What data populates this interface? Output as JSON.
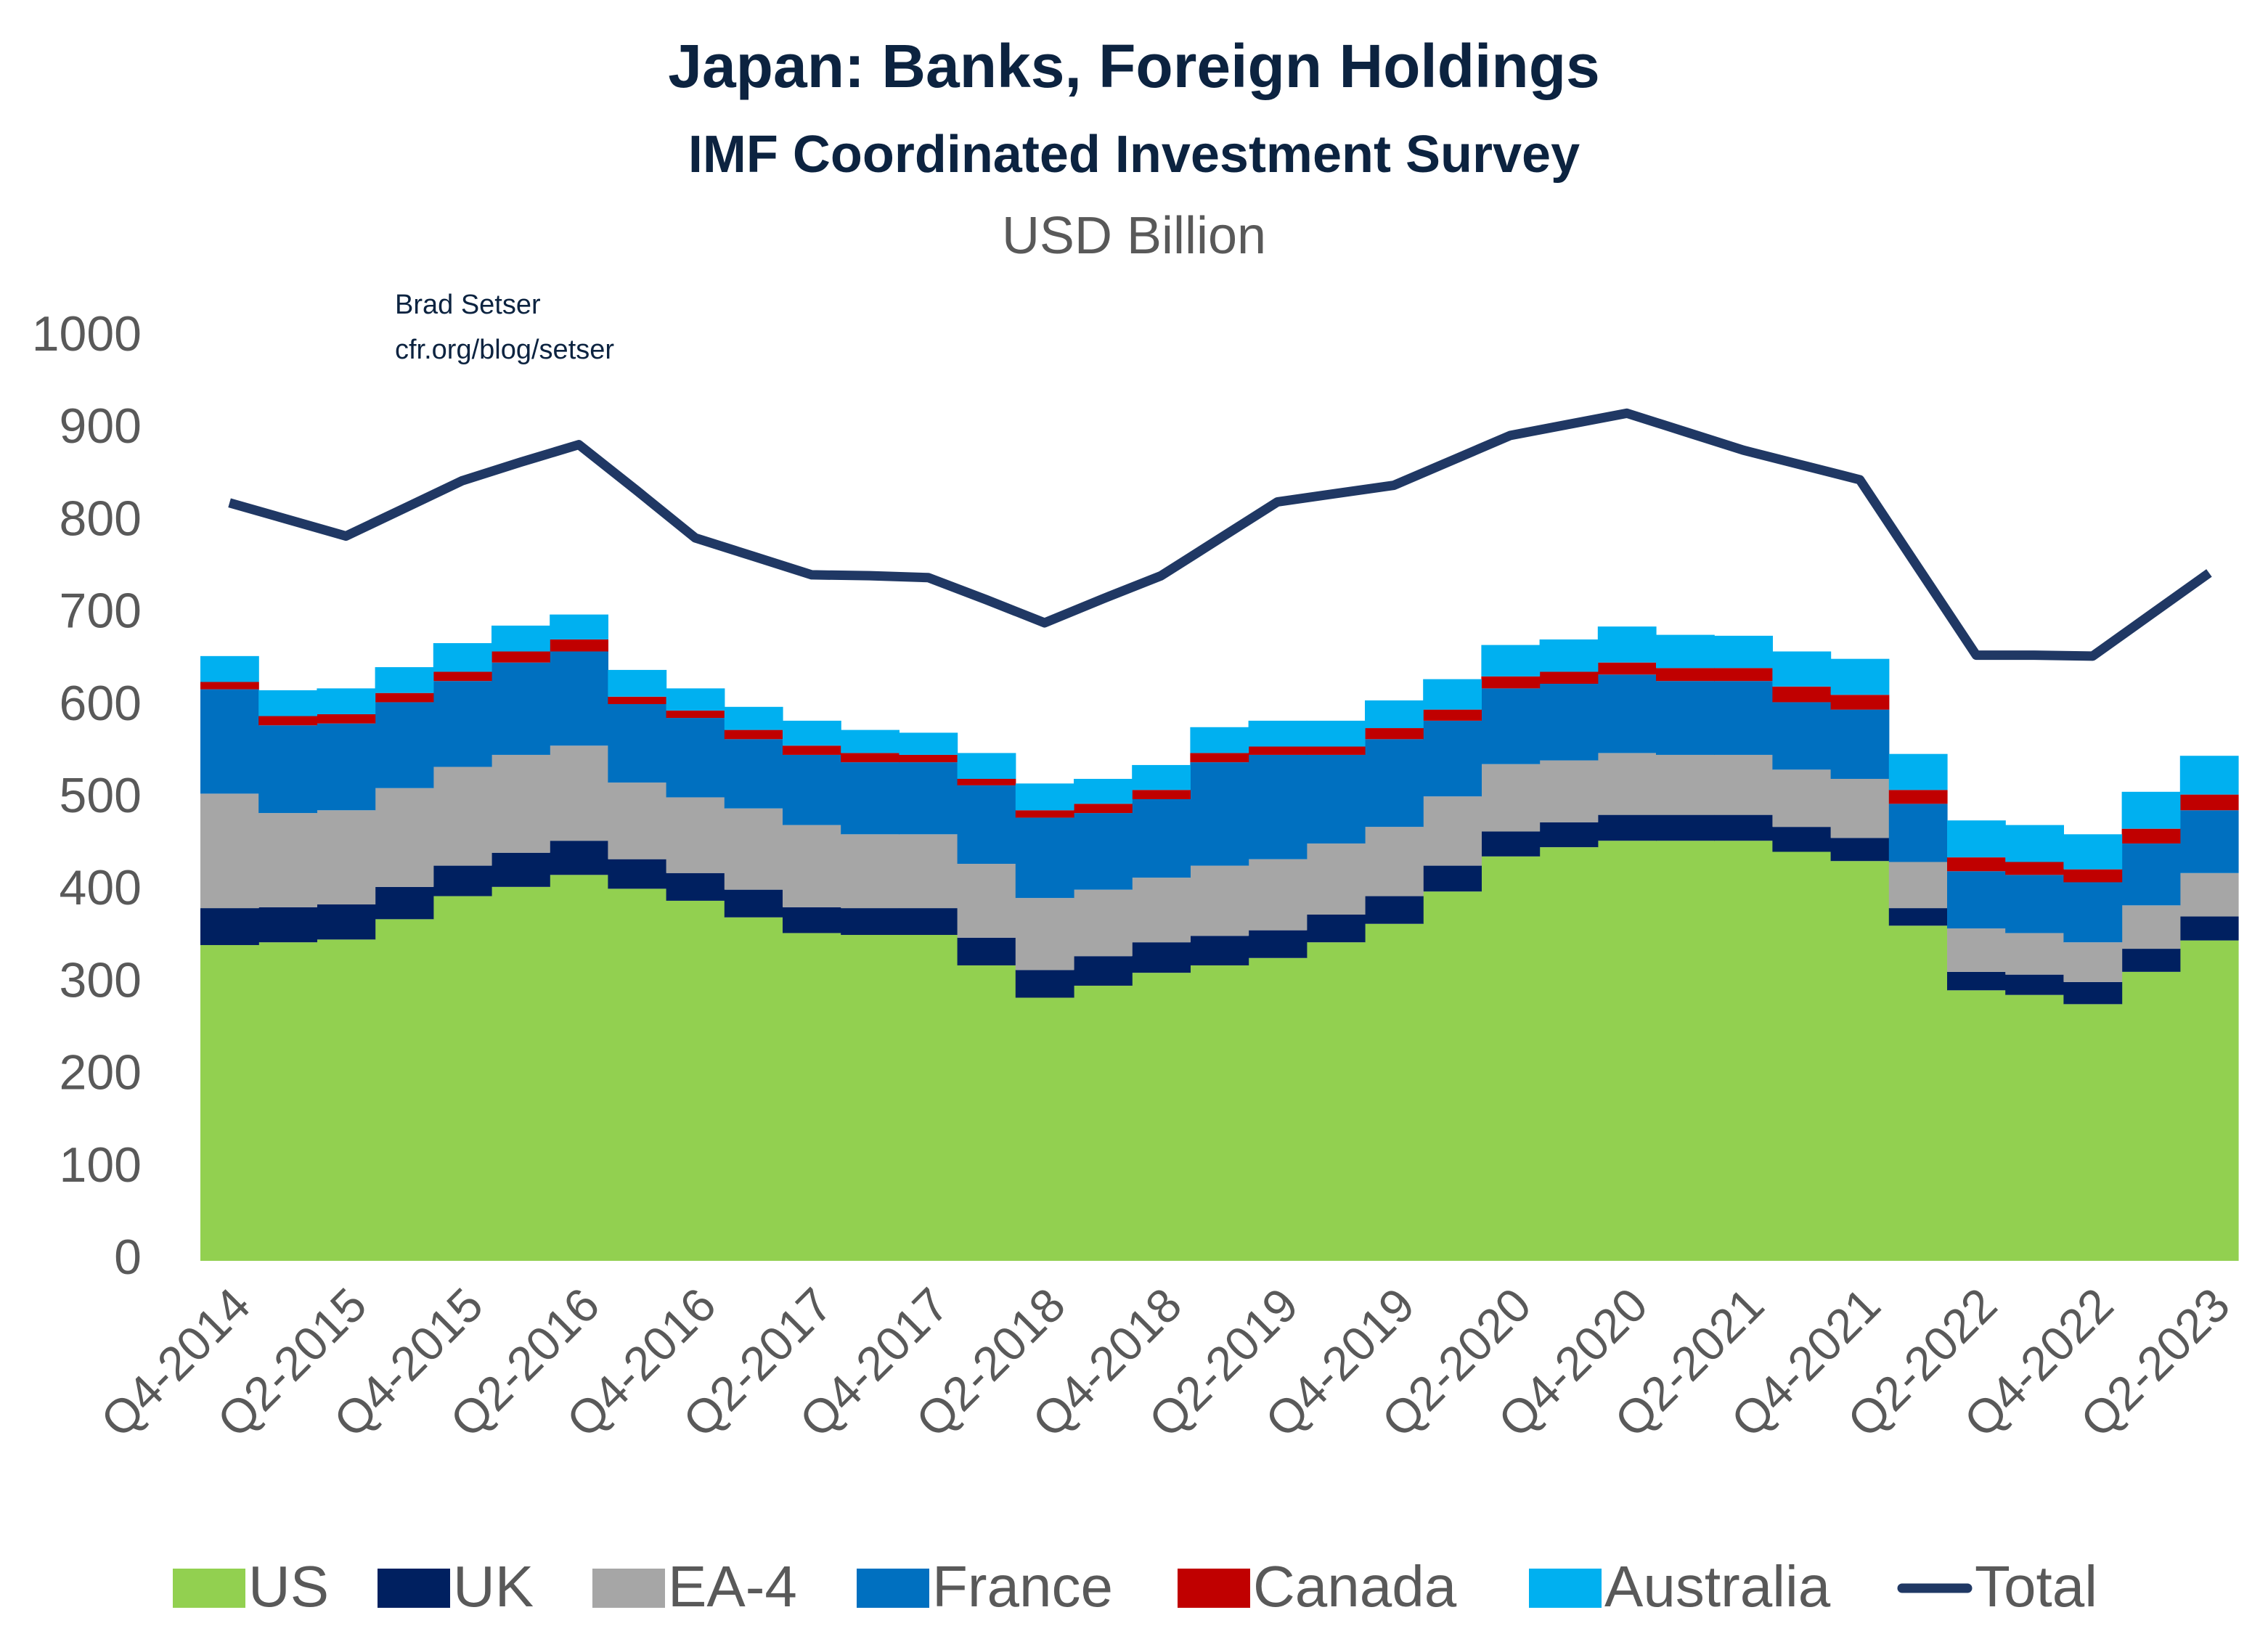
{
  "chart_data": {
    "type": "area",
    "title": "Japan: Banks, Foreign Holdings",
    "subtitle": "IMF Coordinated Investment Survey",
    "y_label": "USD Billion",
    "annotations": [
      "Brad Setser",
      "cfr.org/blog/setser"
    ],
    "categories": [
      "Q4-2014",
      null,
      "Q2-2015",
      null,
      "Q4-2015",
      null,
      "Q2-2016",
      null,
      "Q4-2016",
      null,
      "Q2-2017",
      null,
      "Q4-2017",
      null,
      "Q2-2018",
      null,
      "Q4-2018",
      null,
      "Q2-2019",
      null,
      "Q4-2019",
      null,
      "Q2-2020",
      null,
      "Q4-2020",
      null,
      "Q2-2021",
      null,
      "Q4-2021",
      null,
      "Q2-2022",
      null,
      "Q4-2022",
      null,
      "Q2-2023"
    ],
    "ylim": [
      0,
      1000
    ],
    "yticks": [
      0,
      100,
      200,
      300,
      400,
      500,
      600,
      700,
      800,
      900,
      1000
    ],
    "grid": false,
    "stacked": true,
    "legend": "bottom",
    "series": [
      {
        "name": "US",
        "color": "#92d050",
        "values": [
          342,
          345,
          348,
          370,
          395,
          405,
          418,
          403,
          390,
          372,
          355,
          353,
          353,
          320,
          285,
          298,
          312,
          320,
          328,
          345,
          365,
          400,
          438,
          448,
          455,
          455,
          455,
          443,
          433,
          363,
          293,
          288,
          278,
          313,
          347
        ]
      },
      {
        "name": "UK",
        "color": "#002060",
        "values": [
          40,
          38,
          38,
          35,
          33,
          37,
          37,
          32,
          30,
          30,
          28,
          29,
          29,
          30,
          30,
          32,
          33,
          32,
          30,
          30,
          30,
          28,
          27,
          27,
          28,
          28,
          28,
          27,
          25,
          19,
          20,
          22,
          24,
          25,
          26
        ]
      },
      {
        "name": "EA-4",
        "color": "#a6a6a6",
        "values": [
          124,
          102,
          102,
          107,
          107,
          106,
          103,
          83,
          82,
          88,
          89,
          80,
          80,
          80,
          78,
          72,
          70,
          76,
          77,
          77,
          75,
          75,
          73,
          67,
          67,
          65,
          65,
          62,
          64,
          50,
          47,
          45,
          43,
          47,
          47
        ]
      },
      {
        "name": "France",
        "color": "#0070c0",
        "values": [
          113,
          95,
          94,
          93,
          93,
          100,
          102,
          85,
          86,
          75,
          76,
          78,
          78,
          85,
          87,
          83,
          85,
          112,
          113,
          96,
          95,
          82,
          82,
          83,
          85,
          80,
          80,
          73,
          75,
          63,
          62,
          63,
          65,
          67,
          68
        ]
      },
      {
        "name": "Canada",
        "color": "#c00000",
        "values": [
          8,
          10,
          10,
          10,
          10,
          12,
          13,
          8,
          8,
          10,
          10,
          10,
          8,
          7,
          8,
          10,
          10,
          10,
          9,
          9,
          12,
          12,
          13,
          13,
          13,
          14,
          14,
          17,
          16,
          15,
          15,
          14,
          14,
          16,
          17
        ]
      },
      {
        "name": "Australia",
        "color": "#00b0f0",
        "values": [
          28,
          28,
          28,
          28,
          31,
          28,
          27,
          29,
          24,
          25,
          27,
          25,
          24,
          28,
          29,
          27,
          27,
          28,
          28,
          28,
          30,
          33,
          34,
          35,
          39,
          36,
          35,
          38,
          39,
          39,
          40,
          40,
          38,
          40,
          42
        ]
      },
      {
        "name": "Total",
        "color": "#203864",
        "type": "line",
        "values": [
          821,
          803,
          785,
          815,
          845,
          865,
          884,
          834,
          783,
          763,
          743,
          742,
          740,
          716,
          691,
          717,
          742,
          782,
          822,
          831,
          840,
          867,
          894,
          906,
          918,
          898,
          878,
          862,
          846,
          751,
          656,
          656,
          655,
          700,
          745
        ]
      }
    ]
  }
}
